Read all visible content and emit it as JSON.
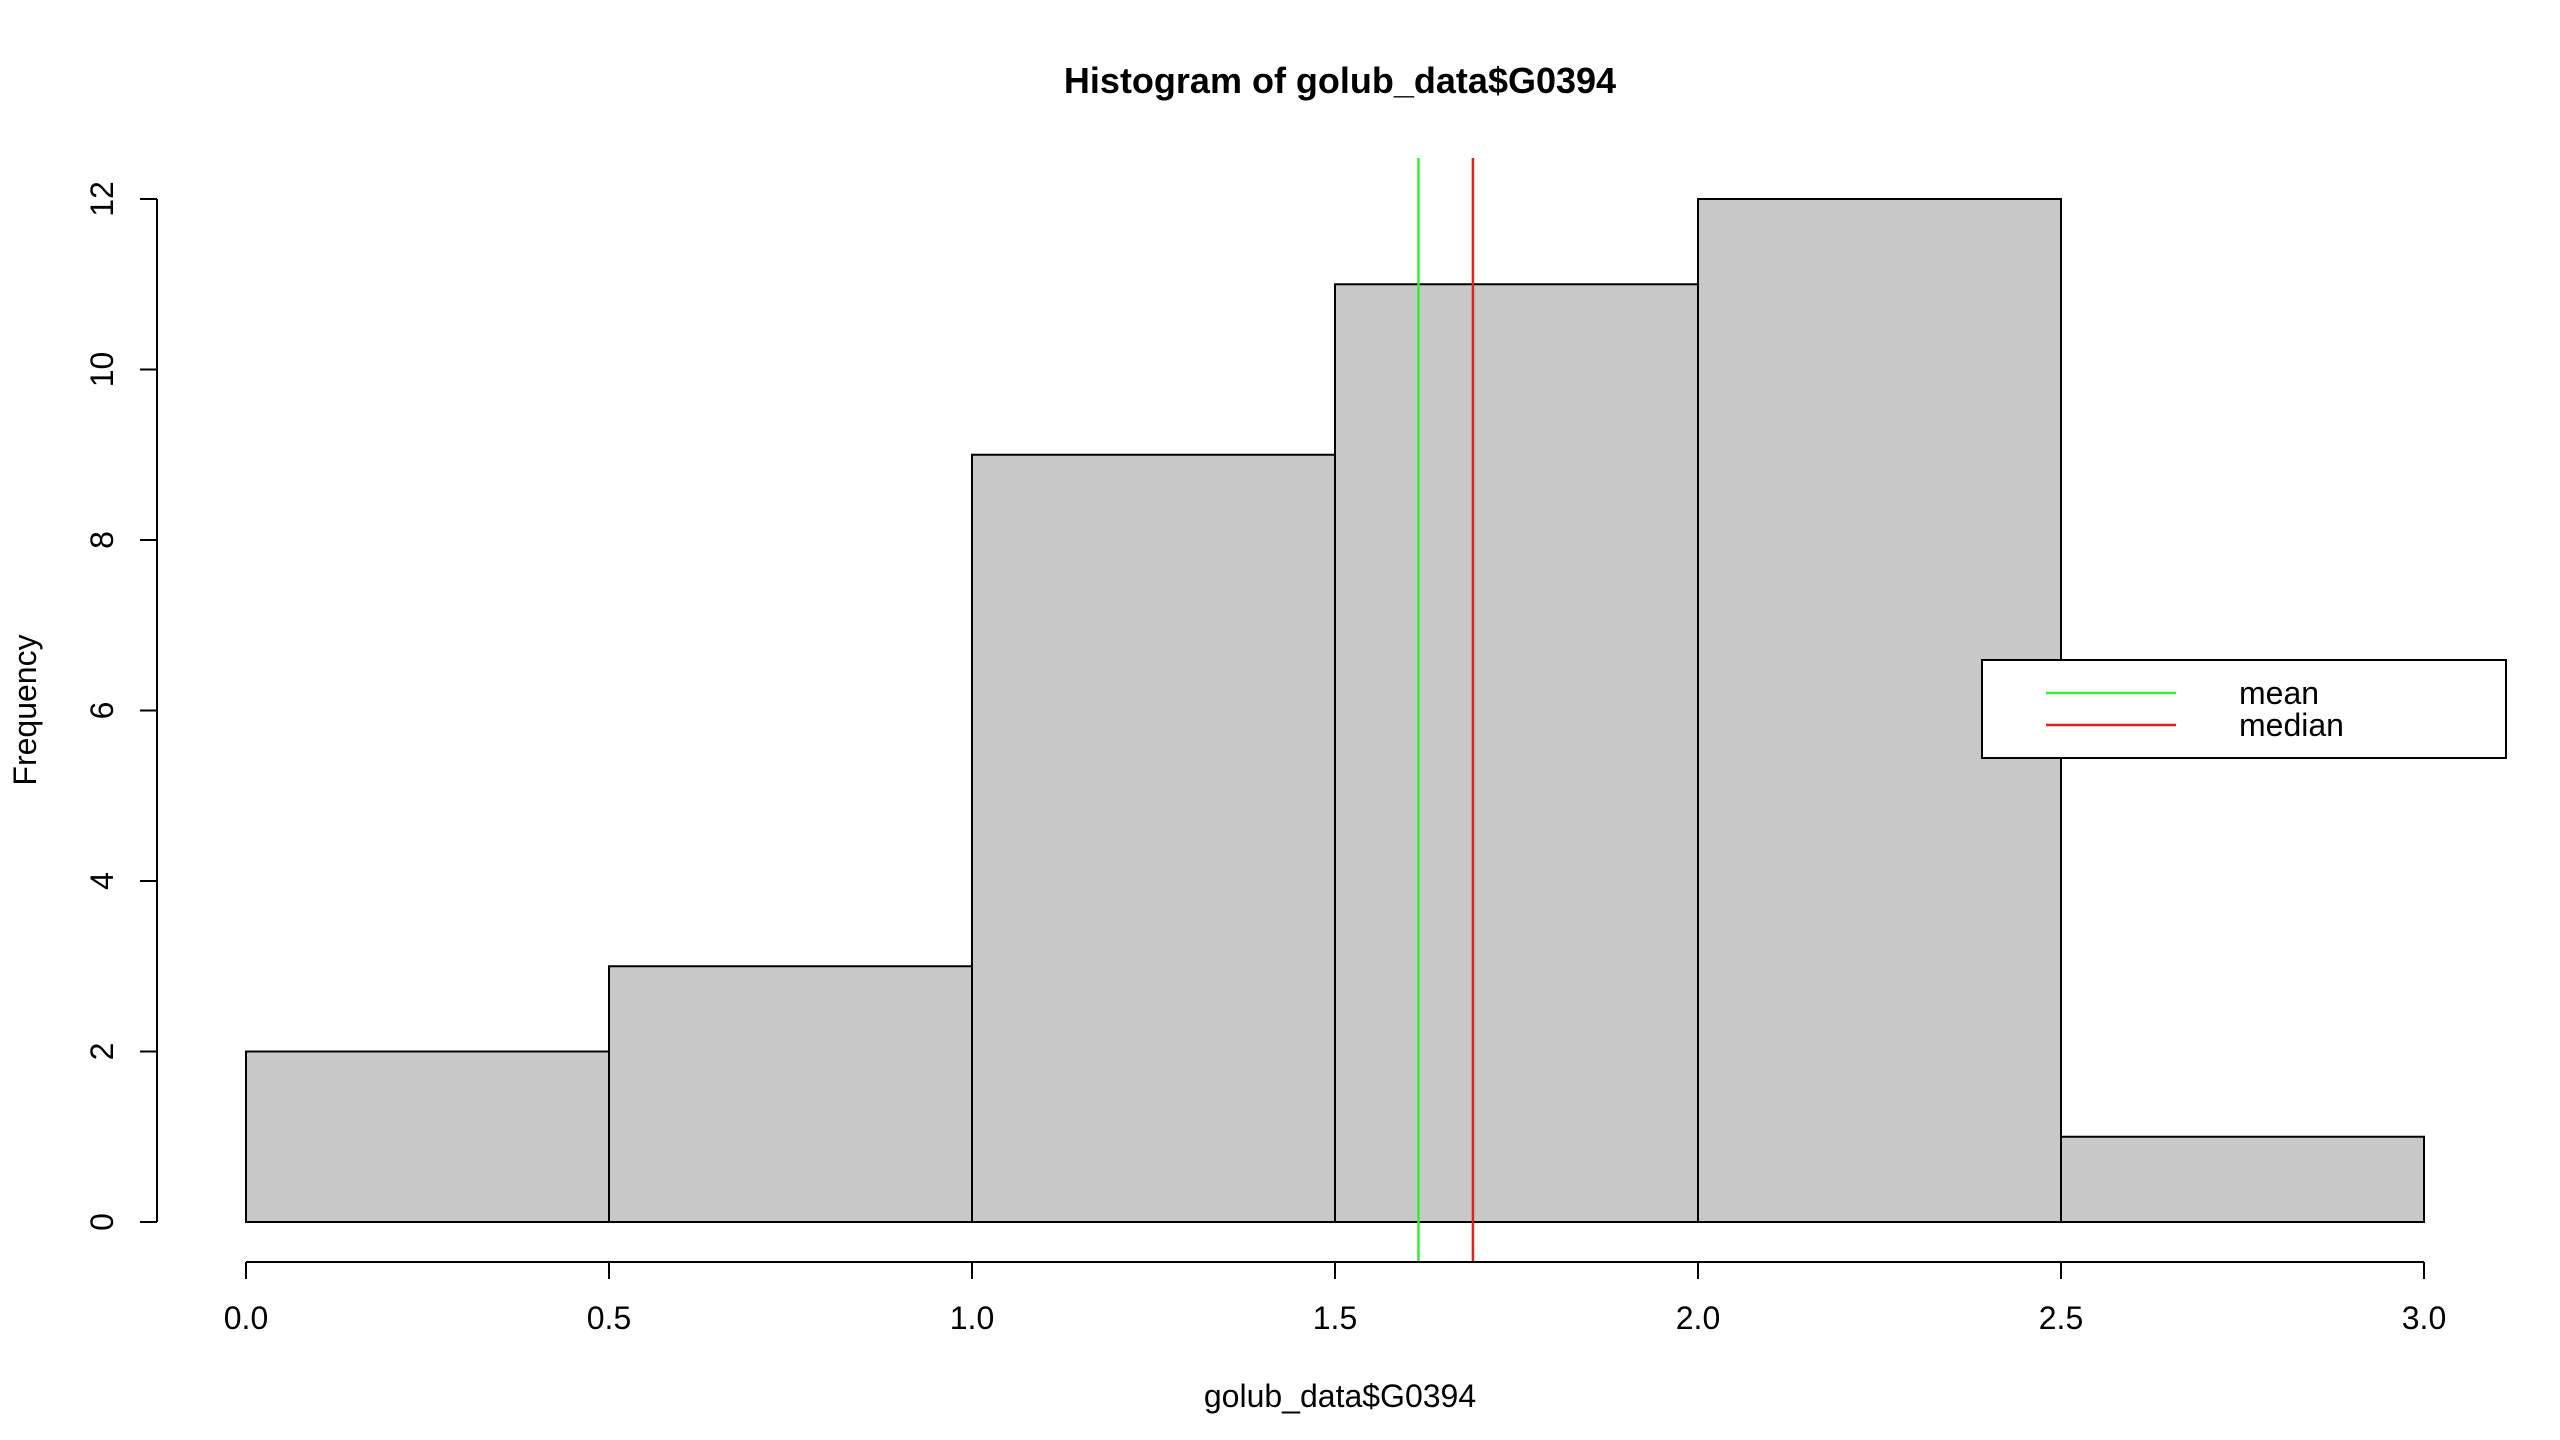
{
  "chart_data": {
    "type": "bar",
    "title": "Histogram of golub_data$G0394",
    "xlabel": "golub_data$G0394",
    "ylabel": "Frequency",
    "bins": [
      {
        "x0": 0.0,
        "x1": 0.5,
        "count": 2
      },
      {
        "x0": 0.5,
        "x1": 1.0,
        "count": 3
      },
      {
        "x0": 1.0,
        "x1": 1.5,
        "count": 9
      },
      {
        "x0": 1.5,
        "x1": 2.0,
        "count": 11
      },
      {
        "x0": 2.0,
        "x1": 2.5,
        "count": 12
      },
      {
        "x0": 2.5,
        "x1": 3.0,
        "count": 1
      }
    ],
    "xlim": [
      0.0,
      3.0
    ],
    "ylim": [
      0,
      12
    ],
    "xticks": [
      "0.0",
      "0.5",
      "1.0",
      "1.5",
      "2.0",
      "2.5",
      "3.0"
    ],
    "yticks": [
      "0",
      "2",
      "4",
      "6",
      "8",
      "10",
      "12"
    ],
    "bar_color": "#c8c8c8",
    "vlines": [
      {
        "name": "mean",
        "x": 1.615,
        "color": "#33ee33"
      },
      {
        "name": "median",
        "x": 1.69,
        "color": "#dd2222"
      }
    ],
    "legend": {
      "placement": "right",
      "entries": [
        {
          "label": "mean",
          "color": "#33ee33"
        },
        {
          "label": "median",
          "color": "#dd2222"
        }
      ]
    },
    "grid": false
  }
}
